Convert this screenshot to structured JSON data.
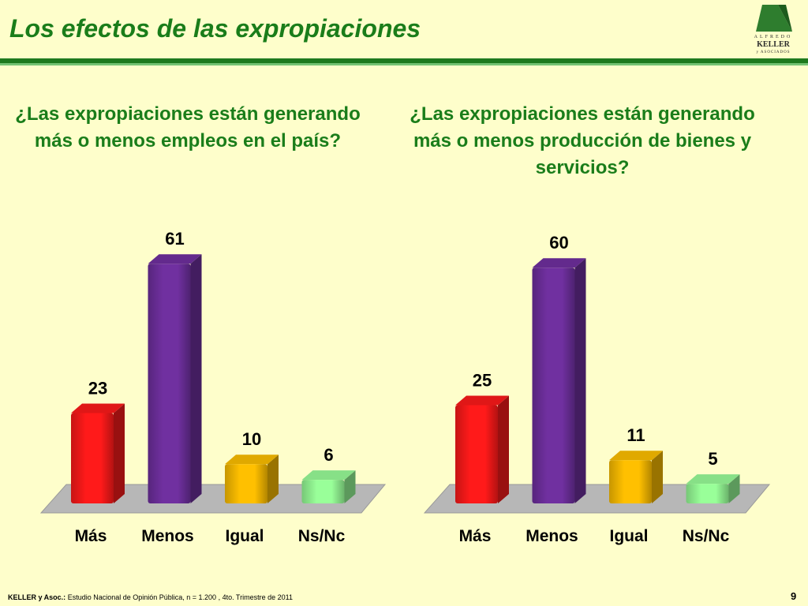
{
  "title": "Los efectos de las expropiaciones",
  "logo": {
    "line1": "ALFREDO",
    "line2": "KELLER",
    "line3": "y ASOCIADOS"
  },
  "colors": {
    "title": "#1a7d1a",
    "rule": "#1e7a1e",
    "floor": "#b7b7b7"
  },
  "chart_data": [
    {
      "type": "bar",
      "title": "¿Las expropiaciones están generando más o menos empleos en el país?",
      "categories": [
        "Más",
        "Menos",
        "Igual",
        "Ns/Nc"
      ],
      "values": [
        23,
        61,
        10,
        6
      ],
      "colors": [
        "#ff1a1a",
        "#7030a0",
        "#ffc000",
        "#99ff99"
      ],
      "ylim": [
        0,
        61
      ]
    },
    {
      "type": "bar",
      "title": "¿Las expropiaciones están generando más o menos producción de bienes y servicios?",
      "categories": [
        "Más",
        "Menos",
        "Igual",
        "Ns/Nc"
      ],
      "values": [
        25,
        60,
        11,
        5
      ],
      "colors": [
        "#ff1a1a",
        "#7030a0",
        "#ffc000",
        "#99ff99"
      ],
      "ylim": [
        0,
        61
      ]
    }
  ],
  "footer": {
    "source": "KELLER y Asoc.:",
    "text": " Estudio Nacional de Opinión Pública, n = 1.200 , 4to. Trimestre de 2011"
  },
  "page_number": "9"
}
